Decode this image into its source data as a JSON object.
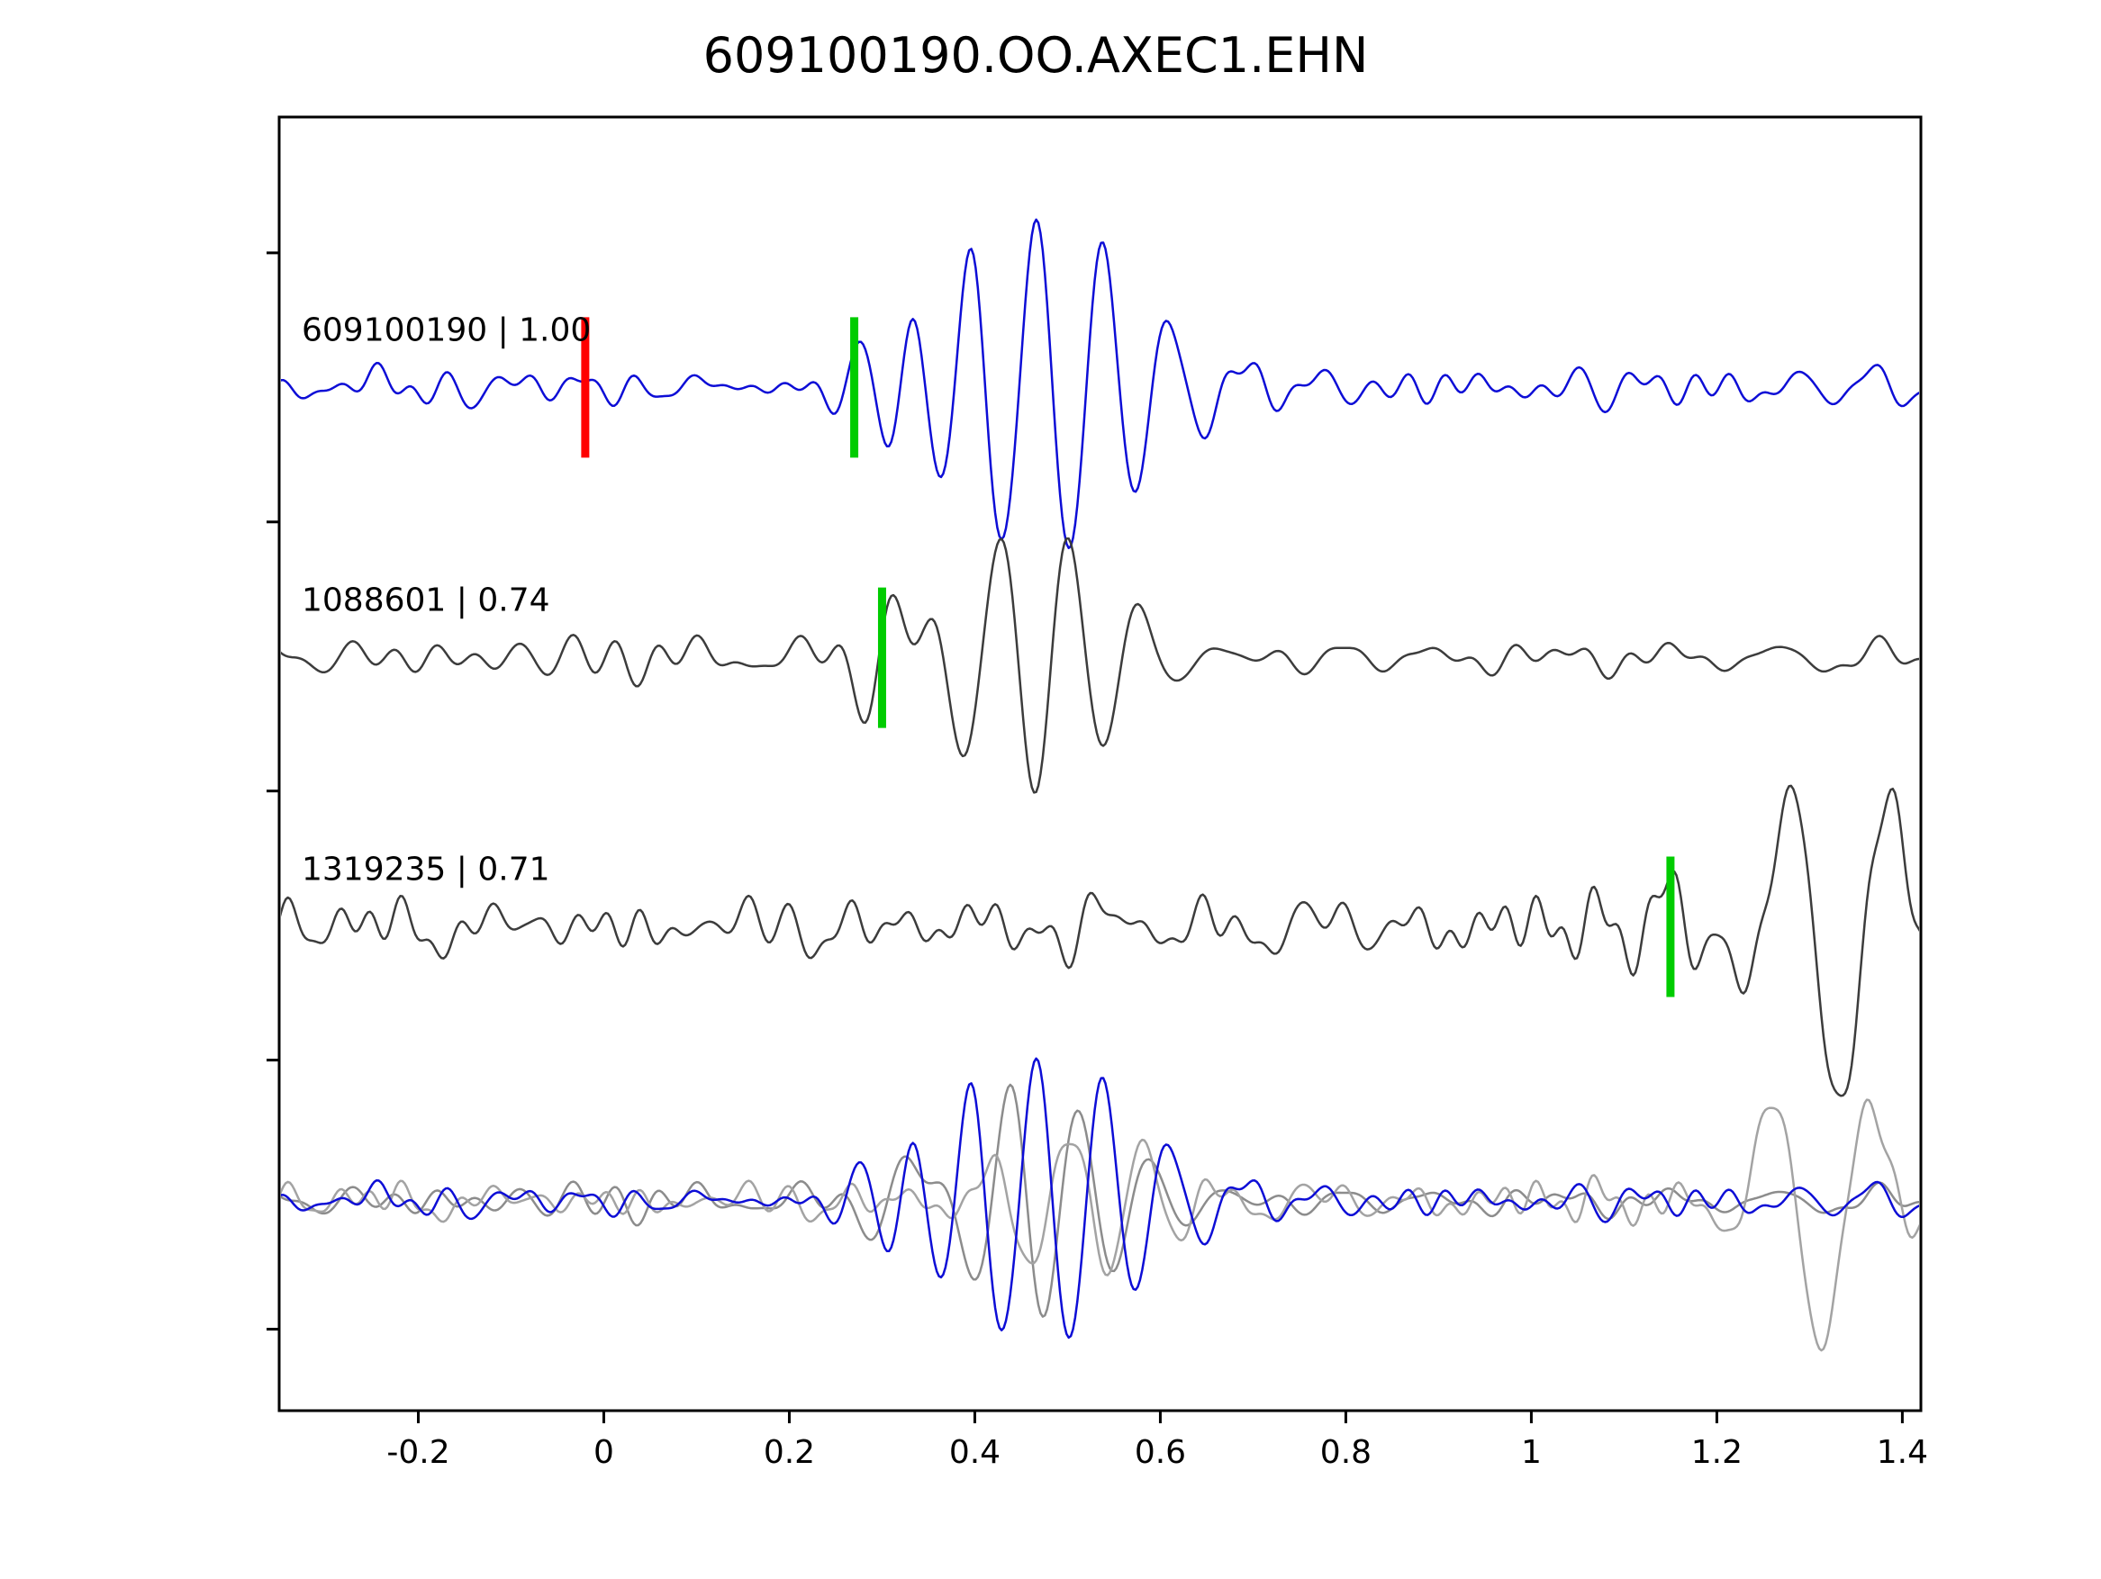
{
  "title": "609100190.OO.AXEC1.EHN",
  "chart_data": {
    "type": "line",
    "title": "609100190.OO.AXEC1.EHN",
    "xlabel": "",
    "ylabel": "",
    "xlim": [
      -0.35,
      1.42
    ],
    "x_ticks": [
      {
        "value": -0.2,
        "label": "-0.2"
      },
      {
        "value": 0,
        "label": "0"
      },
      {
        "value": 0.2,
        "label": "0.2"
      },
      {
        "value": 0.4,
        "label": "0.4"
      },
      {
        "value": 0.6,
        "label": "0.6"
      },
      {
        "value": 0.8,
        "label": "0.8"
      },
      {
        "value": 1,
        "label": "1"
      },
      {
        "value": 1.2,
        "label": "1.2"
      },
      {
        "value": 1.4,
        "label": "1.4"
      }
    ],
    "grid": false,
    "legend": "none",
    "colors": {
      "template_trace": "#0d0dd6",
      "detection_trace": "#3c3c3c",
      "overlay_gray_1": "#8c8c8c",
      "overlay_gray_2": "#a3a3a3",
      "pick_marker": "#ff0000",
      "detection_marker": "#00cc00",
      "axis": "#000000"
    },
    "trace_rows": [
      0.209,
      0.418,
      0.626,
      0.838
    ],
    "traces": [
      {
        "id": "609100190",
        "label": "609100190 | 1.00",
        "correlation": 1.0,
        "color": "#0d0dd6",
        "row": 0,
        "seed": 11,
        "scale": 1.0,
        "noise_amp": 0.17,
        "noise_freq": 26,
        "bursts": [
          {
            "center": 0.47,
            "width": 0.14,
            "amp": 1.0,
            "freq": 14
          },
          {
            "center": 0.3,
            "width": 0.05,
            "amp": 0.45,
            "freq": 16
          }
        ],
        "markers": [
          {
            "name": "pick-marker",
            "x": -0.02,
            "color": "#ff0000"
          },
          {
            "name": "detection-marker",
            "x": 0.27,
            "color": "#00cc00"
          }
        ]
      },
      {
        "id": "1088601",
        "label": "1088601 | 0.74",
        "correlation": 0.74,
        "color": "#3c3c3c",
        "row": 1,
        "seed": 23,
        "scale": 1.0,
        "noise_amp": 0.15,
        "noise_freq": 22,
        "bursts": [
          {
            "center": 0.46,
            "width": 0.12,
            "amp": 0.8,
            "freq": 13
          },
          {
            "center": 0.31,
            "width": 0.045,
            "amp": 0.5,
            "freq": 14
          }
        ],
        "markers": [
          {
            "name": "detection-marker",
            "x": 0.3,
            "color": "#00cc00"
          }
        ]
      },
      {
        "id": "1319235",
        "label": "1319235 | 0.71",
        "correlation": 0.71,
        "color": "#3c3c3c",
        "row": 2,
        "seed": 37,
        "scale": 1.0,
        "noise_amp": 0.22,
        "noise_freq": 30,
        "bursts": [
          {
            "center": 1.33,
            "width": 0.1,
            "amp": 0.95,
            "freq": 9
          },
          {
            "center": 1.16,
            "width": 0.04,
            "amp": 0.4,
            "freq": 12
          }
        ],
        "markers": [
          {
            "name": "detection-marker",
            "x": 1.15,
            "color": "#00cc00"
          }
        ]
      }
    ],
    "overlay_traces": [
      {
        "id": "overlay-1088601",
        "color": "#8c8c8c",
        "row": 3,
        "seed": 23,
        "scale": 0.85,
        "noise_amp": 0.15,
        "noise_freq": 22,
        "bursts": [
          {
            "center": 0.47,
            "width": 0.12,
            "amp": 0.8,
            "freq": 13
          },
          {
            "center": 0.32,
            "width": 0.045,
            "amp": 0.5,
            "freq": 14
          }
        ],
        "markers": []
      },
      {
        "id": "overlay-1319235",
        "color": "#a3a3a3",
        "row": 3,
        "seed": 37,
        "scale": 0.9,
        "noise_amp": 0.16,
        "noise_freq": 30,
        "bursts": [
          {
            "center": 1.31,
            "width": 0.09,
            "amp": 0.9,
            "freq": 9
          },
          {
            "center": 0.52,
            "width": 0.1,
            "amp": 0.55,
            "freq": 12
          }
        ],
        "markers": []
      },
      {
        "id": "overlay-609100190",
        "color": "#0d0dd6",
        "row": 3,
        "seed": 11,
        "scale": 0.85,
        "noise_amp": 0.17,
        "noise_freq": 26,
        "bursts": [
          {
            "center": 0.47,
            "width": 0.14,
            "amp": 1.0,
            "freq": 14
          },
          {
            "center": 0.3,
            "width": 0.05,
            "amp": 0.45,
            "freq": 16
          }
        ],
        "markers": []
      }
    ]
  }
}
